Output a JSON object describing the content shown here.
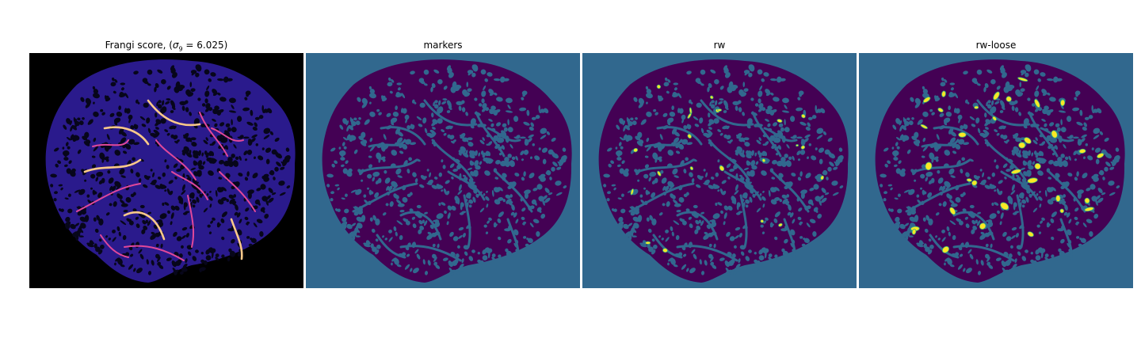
{
  "figure": {
    "panels": [
      {
        "id": "frangi",
        "title_prefix": "Frangi score, (",
        "title_sigma": "σ",
        "title_sub": "9",
        "title_suffix": " = 6.025)",
        "colormap": "magma"
      },
      {
        "id": "markers",
        "title": "markers",
        "colormap": "viridis"
      },
      {
        "id": "rw",
        "title": "rw",
        "colormap": "viridis"
      },
      {
        "id": "rw-loose",
        "title": "rw-loose",
        "colormap": "viridis"
      }
    ],
    "colors": {
      "frangi_background": "#000000",
      "frangi_tissue": "#2a1a8c",
      "frangi_holes": "#07061a",
      "frangi_vessel": "#e0489a",
      "frangi_vessel_hot": "#fbc989",
      "label_background": "#31688e",
      "label_tissue": "#440154",
      "label_vessel": "#3b528b",
      "label_highlight": "#fde725",
      "label_highlight_edge": "#35b779"
    }
  }
}
